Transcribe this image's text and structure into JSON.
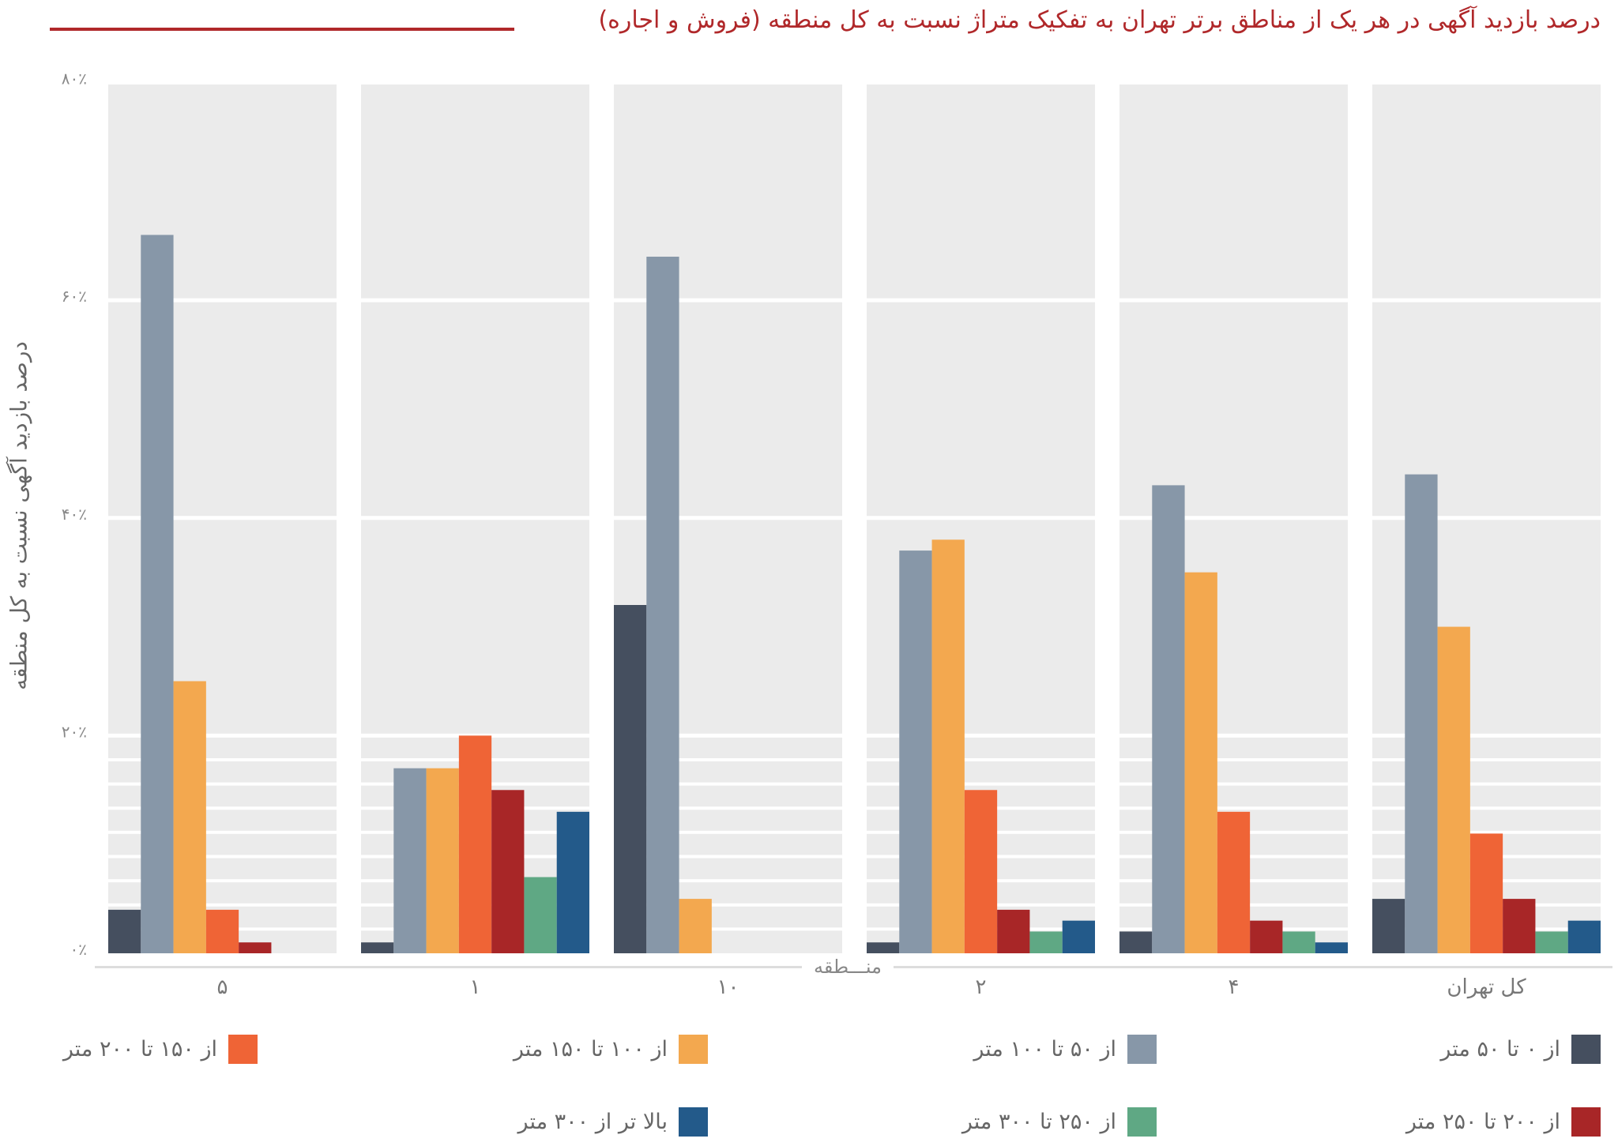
{
  "chart_data": {
    "type": "bar",
    "title": "درصد بازدید آگهی در هر یک از مناطق برتر تهران به تفکیک متراژ نسبت به کل منطقه (فروش و اجاره)",
    "ylabel": "درصد بازدید آگهی نسبت به کل منطقه",
    "xlabel": "منـــطقه",
    "ylim": [
      0,
      80
    ],
    "yticks": [
      0,
      20,
      40,
      60,
      80
    ],
    "ytick_labels": [
      "۰٪",
      "۲۰٪",
      "۴۰٪",
      "۶۰٪",
      "۸۰٪"
    ],
    "grid": true,
    "legend_position": "bottom",
    "categories": [
      "۵",
      "۱",
      "۱۰",
      "۲",
      "۴",
      "کل تهران"
    ],
    "series": [
      {
        "name": "از ۰ تا ۵۰ متر",
        "color": "#454f5f",
        "values": [
          4,
          1,
          32,
          1,
          2,
          5
        ]
      },
      {
        "name": "از ۵۰ تا ۱۰۰ متر",
        "color": "#8797a8",
        "values": [
          66,
          17,
          64,
          37,
          43,
          44
        ]
      },
      {
        "name": "از ۱۰۰ تا ۱۵۰ متر",
        "color": "#f3a84f",
        "values": [
          25,
          17,
          5,
          38,
          35,
          30
        ]
      },
      {
        "name": "از ۱۵۰ تا ۲۰۰ متر",
        "color": "#ef6436",
        "values": [
          4,
          20,
          0,
          15,
          13,
          11
        ]
      },
      {
        "name": "از ۲۰۰ تا ۲۵۰ متر",
        "color": "#a82627",
        "values": [
          1,
          15,
          0,
          4,
          3,
          5
        ]
      },
      {
        "name": "از ۲۵۰ تا ۳۰۰ متر",
        "color": "#5fa884",
        "values": [
          0,
          7,
          0,
          2,
          2,
          2
        ]
      },
      {
        "name": "بالا تر از ۳۰۰ متر",
        "color": "#235a8a",
        "values": [
          0,
          13,
          0,
          3,
          1,
          3
        ]
      }
    ]
  }
}
